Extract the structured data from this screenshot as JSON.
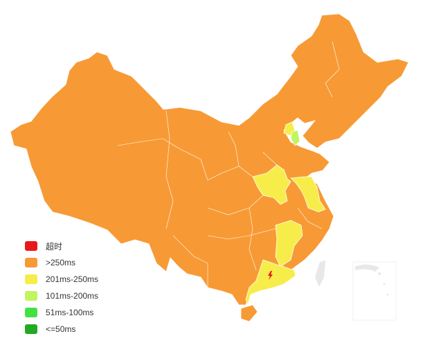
{
  "legend": {
    "items": [
      {
        "label": "超时",
        "color": "#e8191a"
      },
      {
        "label": ">250ms",
        "color": "#f79a35"
      },
      {
        "label": "201ms-250ms",
        "color": "#f6ed4a"
      },
      {
        "label": "101ms-200ms",
        "color": "#c0f55f"
      },
      {
        "label": "51ms-100ms",
        "color": "#43e142"
      },
      {
        "label": "<=50ms",
        "color": "#22aa22"
      }
    ]
  },
  "map": {
    "default_level": 1,
    "region_levels": {
      "beijing": 2,
      "tianjin": 3,
      "henan": 2,
      "jiangsu": 2,
      "jiangxi": 2,
      "guangdong": 2
    },
    "no_data_color": "#e8e8e8",
    "border_color": "#ffffff",
    "marker_icon": "lightning-icon",
    "marker_color": "#e8191a"
  }
}
